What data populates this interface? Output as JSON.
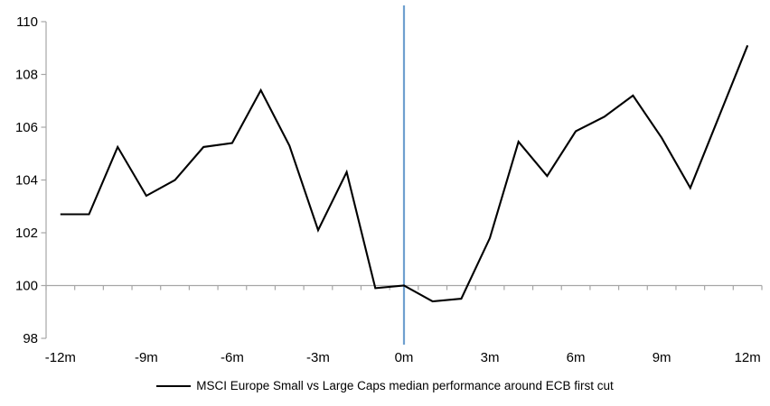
{
  "chart_data": {
    "type": "line",
    "title": "",
    "legend_label": "MSCI Europe Small vs Large Caps median performance around ECB first cut",
    "x": [
      -12,
      -11,
      -10,
      -9,
      -8,
      -7,
      -6,
      -5,
      -4,
      -3,
      -2,
      -1,
      0,
      1,
      2,
      3,
      4,
      5,
      6,
      7,
      8,
      9,
      10,
      11,
      12
    ],
    "series": [
      {
        "name": "MSCI Europe Small vs Large Caps median performance around ECB first cut",
        "values": [
          102.7,
          102.7,
          105.25,
          103.4,
          104.0,
          105.25,
          105.4,
          107.4,
          105.3,
          102.1,
          104.3,
          99.9,
          100.0,
          99.4,
          99.5,
          101.8,
          105.45,
          104.15,
          105.85,
          106.4,
          107.2,
          105.6,
          103.7,
          106.4,
          109.1
        ]
      }
    ],
    "x_tick_months": [
      -12,
      -9,
      -6,
      -3,
      0,
      3,
      6,
      9,
      12
    ],
    "x_tick_labels": [
      "-12m",
      "-9m",
      "-6m",
      "-3m",
      "0m",
      "3m",
      "6m",
      "9m",
      "12m"
    ],
    "y_ticks": [
      98,
      100,
      102,
      104,
      106,
      108,
      110
    ],
    "ylim": [
      98,
      110.6
    ],
    "xlim": [
      -12.5,
      12.5
    ],
    "baseline_value": 100,
    "event_line_at_month": 0,
    "grid": "off",
    "legend_position": "bottom-center",
    "colors": {
      "series_line": "#000000",
      "event_line": "#6fa0cf",
      "axis_line": "#a6a6a6",
      "label_text": "#000000"
    }
  }
}
